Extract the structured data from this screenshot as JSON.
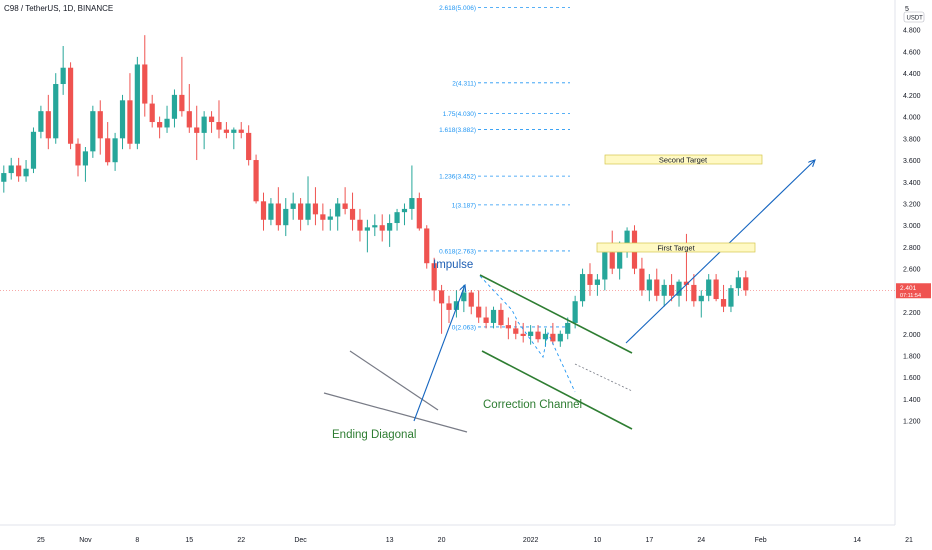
{
  "header": {
    "title": "C98 / TetherUS, 1D, BINANCE"
  },
  "chart_data": {
    "type": "candlestick",
    "title": "C98 / TetherUS, 1D, BINANCE",
    "colors": {
      "up": "#26a69a",
      "down": "#ef5350",
      "fib": "#2196f3",
      "trend": "#2e7d32",
      "arrow": "#1565c0",
      "wedge": "#787b86",
      "target_fill": "#fff9c4",
      "target_border": "#d4c64a",
      "price_line": "#ef5350"
    },
    "y_axis": {
      "currency_badge": "USDT",
      "top_label": "5",
      "ticks": [
        "4.800",
        "4.600",
        "4.400",
        "4.200",
        "4.000",
        "3.800",
        "3.600",
        "3.400",
        "3.200",
        "3.000",
        "2.800",
        "2.600",
        "2.400",
        "2.200",
        "2.000",
        "1.800",
        "1.600",
        "1.400",
        "1.200"
      ],
      "range": [
        1.05,
        5.05
      ]
    },
    "x_axis": {
      "ticks": [
        {
          "label": "25",
          "i": 5
        },
        {
          "label": "Nov",
          "i": 11
        },
        {
          "label": "8",
          "i": 18
        },
        {
          "label": "15",
          "i": 25
        },
        {
          "label": "22",
          "i": 32
        },
        {
          "label": "Dec",
          "i": 40
        },
        {
          "label": "13",
          "i": 52
        },
        {
          "label": "20",
          "i": 59
        },
        {
          "label": "2022",
          "i": 71
        },
        {
          "label": "10",
          "i": 80
        },
        {
          "label": "17",
          "i": 87
        },
        {
          "label": "24",
          "i": 94
        },
        {
          "label": "Feb",
          "i": 102
        },
        {
          "label": "14",
          "i": 115
        },
        {
          "label": "21",
          "i": 122
        }
      ]
    },
    "current_price": {
      "value": 2.401,
      "label": "2.401",
      "countdown": "07:11:54"
    },
    "candles": [
      [
        3.4,
        3.55,
        3.3,
        3.48
      ],
      [
        3.48,
        3.62,
        3.42,
        3.55
      ],
      [
        3.55,
        3.62,
        3.4,
        3.45
      ],
      [
        3.45,
        3.6,
        3.4,
        3.52
      ],
      [
        3.52,
        3.9,
        3.48,
        3.86
      ],
      [
        3.86,
        4.1,
        3.8,
        4.05
      ],
      [
        4.05,
        4.2,
        3.7,
        3.8
      ],
      [
        3.8,
        4.4,
        3.75,
        4.3
      ],
      [
        4.3,
        4.65,
        4.2,
        4.45
      ],
      [
        4.45,
        4.5,
        3.7,
        3.75
      ],
      [
        3.75,
        3.8,
        3.45,
        3.55
      ],
      [
        3.55,
        3.72,
        3.4,
        3.68
      ],
      [
        3.68,
        4.1,
        3.62,
        4.05
      ],
      [
        4.05,
        4.15,
        3.65,
        3.8
      ],
      [
        3.8,
        3.95,
        3.55,
        3.58
      ],
      [
        3.58,
        3.85,
        3.5,
        3.8
      ],
      [
        3.8,
        4.2,
        3.7,
        4.15
      ],
      [
        4.15,
        4.4,
        3.7,
        3.75
      ],
      [
        3.75,
        4.55,
        3.7,
        4.48
      ],
      [
        4.48,
        4.75,
        4.0,
        4.12
      ],
      [
        4.12,
        4.2,
        3.9,
        3.95
      ],
      [
        3.95,
        4.0,
        3.8,
        3.9
      ],
      [
        3.9,
        4.1,
        3.85,
        3.98
      ],
      [
        3.98,
        4.25,
        3.9,
        4.2
      ],
      [
        4.2,
        4.55,
        4.0,
        4.05
      ],
      [
        4.05,
        4.3,
        3.85,
        3.9
      ],
      [
        3.9,
        4.1,
        3.6,
        3.85
      ],
      [
        3.85,
        4.05,
        3.7,
        4.0
      ],
      [
        4.0,
        4.05,
        3.85,
        3.95
      ],
      [
        3.95,
        4.15,
        3.8,
        3.88
      ],
      [
        3.88,
        3.95,
        3.8,
        3.85
      ],
      [
        3.85,
        3.9,
        3.7,
        3.88
      ],
      [
        3.88,
        3.95,
        3.8,
        3.85
      ],
      [
        3.85,
        3.92,
        3.55,
        3.6
      ],
      [
        3.6,
        3.65,
        3.2,
        3.22
      ],
      [
        3.22,
        3.3,
        2.95,
        3.05
      ],
      [
        3.05,
        3.25,
        3.0,
        3.2
      ],
      [
        3.2,
        3.35,
        2.95,
        3.0
      ],
      [
        3.0,
        3.25,
        2.9,
        3.15
      ],
      [
        3.15,
        3.3,
        3.05,
        3.2
      ],
      [
        3.2,
        3.25,
        2.95,
        3.05
      ],
      [
        3.05,
        3.45,
        3.0,
        3.2
      ],
      [
        3.2,
        3.35,
        3.0,
        3.1
      ],
      [
        3.1,
        3.2,
        2.95,
        3.05
      ],
      [
        3.05,
        3.15,
        2.95,
        3.08
      ],
      [
        3.08,
        3.25,
        2.95,
        3.2
      ],
      [
        3.2,
        3.35,
        3.1,
        3.15
      ],
      [
        3.15,
        3.3,
        2.95,
        3.05
      ],
      [
        3.05,
        3.15,
        2.85,
        2.95
      ],
      [
        2.95,
        3.05,
        2.75,
        2.98
      ],
      [
        2.98,
        3.1,
        2.9,
        3.0
      ],
      [
        3.0,
        3.1,
        2.85,
        2.95
      ],
      [
        2.95,
        3.1,
        2.8,
        3.02
      ],
      [
        3.02,
        3.15,
        2.95,
        3.12
      ],
      [
        3.12,
        3.2,
        3.0,
        3.15
      ],
      [
        3.15,
        3.55,
        3.05,
        3.25
      ],
      [
        3.25,
        3.3,
        2.95,
        2.97
      ],
      [
        2.97,
        3.0,
        2.6,
        2.65
      ],
      [
        2.65,
        2.7,
        2.3,
        2.4
      ],
      [
        2.4,
        2.45,
        2.0,
        2.28
      ],
      [
        2.28,
        2.35,
        2.1,
        2.22
      ],
      [
        2.22,
        2.4,
        2.15,
        2.3
      ],
      [
        2.3,
        2.45,
        2.2,
        2.38
      ],
      [
        2.38,
        2.4,
        2.18,
        2.25
      ],
      [
        2.25,
        2.4,
        2.1,
        2.15
      ],
      [
        2.15,
        2.25,
        2.05,
        2.1
      ],
      [
        2.1,
        2.25,
        2.05,
        2.22
      ],
      [
        2.22,
        2.28,
        2.05,
        2.08
      ],
      [
        2.08,
        2.15,
        1.95,
        2.05
      ],
      [
        2.05,
        2.12,
        1.95,
        2.0
      ],
      [
        2.0,
        2.1,
        1.92,
        1.98
      ],
      [
        1.98,
        2.08,
        1.9,
        2.02
      ],
      [
        2.02,
        2.08,
        1.92,
        1.95
      ],
      [
        1.95,
        2.05,
        1.88,
        2.0
      ],
      [
        2.0,
        2.1,
        1.9,
        1.93
      ],
      [
        1.93,
        2.03,
        1.88,
        2.0
      ],
      [
        2.0,
        2.15,
        1.95,
        2.1
      ],
      [
        2.1,
        2.35,
        2.05,
        2.3
      ],
      [
        2.3,
        2.6,
        2.25,
        2.55
      ],
      [
        2.55,
        2.65,
        2.35,
        2.45
      ],
      [
        2.45,
        2.55,
        2.35,
        2.5
      ],
      [
        2.5,
        2.8,
        2.4,
        2.75
      ],
      [
        2.75,
        2.95,
        2.55,
        2.6
      ],
      [
        2.6,
        2.85,
        2.5,
        2.78
      ],
      [
        2.78,
        2.98,
        2.7,
        2.95
      ],
      [
        2.95,
        3.0,
        2.55,
        2.6
      ],
      [
        2.6,
        2.7,
        2.35,
        2.4
      ],
      [
        2.4,
        2.55,
        2.3,
        2.5
      ],
      [
        2.5,
        2.6,
        2.3,
        2.35
      ],
      [
        2.35,
        2.5,
        2.25,
        2.45
      ],
      [
        2.45,
        2.55,
        2.3,
        2.35
      ],
      [
        2.35,
        2.5,
        2.25,
        2.48
      ],
      [
        2.48,
        2.92,
        2.3,
        2.45
      ],
      [
        2.45,
        2.55,
        2.25,
        2.3
      ],
      [
        2.3,
        2.4,
        2.15,
        2.35
      ],
      [
        2.35,
        2.55,
        2.3,
        2.5
      ],
      [
        2.5,
        2.55,
        2.3,
        2.32
      ],
      [
        2.32,
        2.45,
        2.2,
        2.25
      ],
      [
        2.25,
        2.45,
        2.2,
        2.42
      ],
      [
        2.42,
        2.58,
        2.35,
        2.52
      ],
      [
        2.52,
        2.58,
        2.35,
        2.4
      ]
    ],
    "fib_levels": [
      {
        "label": "2.618(5.006)",
        "price": 5.006
      },
      {
        "label": "2(4.311)",
        "price": 4.311
      },
      {
        "label": "1.75(4.030)",
        "price": 4.03
      },
      {
        "label": "1.618(3.882)",
        "price": 3.882
      },
      {
        "label": "1.236(3.452)",
        "price": 3.452
      },
      {
        "label": "1(3.187)",
        "price": 3.187
      },
      {
        "label": "0.618(2.763)",
        "price": 2.763
      },
      {
        "label": "0(2.063)",
        "price": 2.063
      }
    ],
    "annotations": {
      "impulse": "Impulse",
      "ending_diagonal": "Ending Diagonal",
      "correction_channel": "Correction Channel",
      "first_target": "First Target",
      "second_target": "Second  Target"
    }
  }
}
